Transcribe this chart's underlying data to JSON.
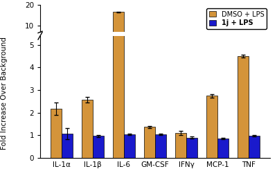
{
  "categories": [
    "IL-1α",
    "IL-1β",
    "IL-6",
    "GM-CSF",
    "IFNγ",
    "MCP-1",
    "TNF"
  ],
  "dmso_values": [
    2.18,
    2.57,
    16.5,
    1.37,
    1.1,
    2.75,
    4.5
  ],
  "dmso_errors": [
    0.28,
    0.12,
    0.25,
    0.05,
    0.1,
    0.08,
    0.07
  ],
  "lps_values": [
    1.08,
    0.97,
    1.04,
    1.05,
    0.9,
    0.85,
    0.97
  ],
  "lps_errors": [
    0.25,
    0.05,
    0.03,
    0.03,
    0.05,
    0.03,
    0.03
  ],
  "dmso_color": "#D4943A",
  "lps_color": "#1A1ACC",
  "ylabel": "Fold Increase Over Background",
  "legend_dmso": "DMSO + LPS",
  "legend_lps": "1j + LPS",
  "bar_width": 0.35,
  "background_color": "#ffffff"
}
